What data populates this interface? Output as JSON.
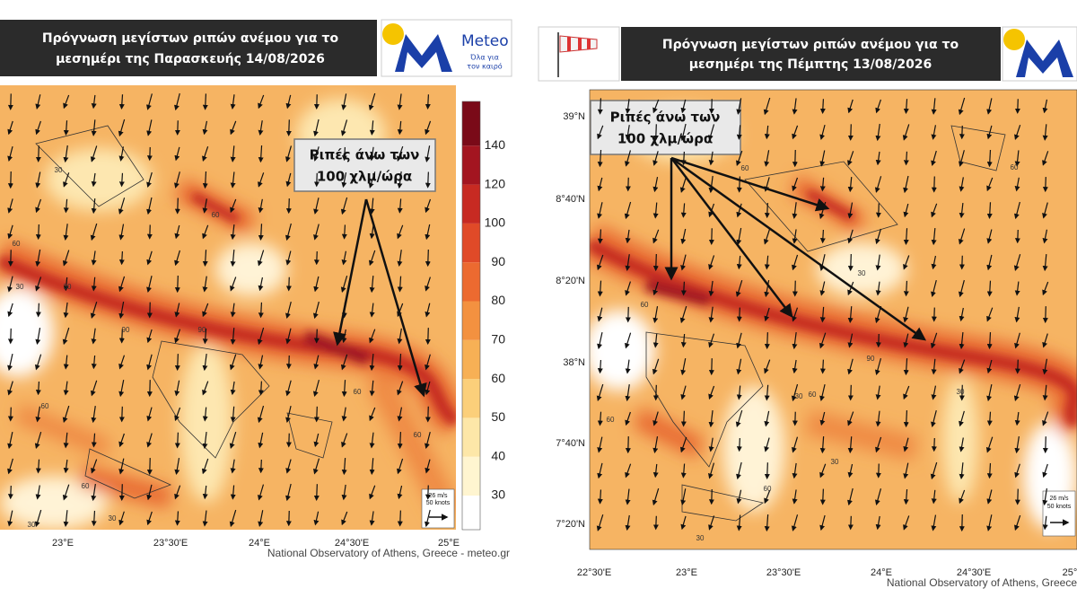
{
  "left_panel": {
    "title_lines": [
      "Πρόγνωση μεγίστων ριπών ανέμου για το",
      "μεσημέρι της Παρασκευής 14/08/2026"
    ],
    "logo": {
      "name": "Meteo",
      "tagline_lines": [
        "Όλα για",
        "τον καιρό"
      ]
    },
    "callout_lines": [
      "Ριπές άνω των",
      "100 χλμ/ώρα"
    ],
    "colorbar_labels": [
      30,
      40,
      50,
      60,
      70,
      80,
      90,
      100,
      120,
      140
    ],
    "x_labels": [
      "23°E",
      "23°30'E",
      "24°E",
      "24°30'E",
      "25°E"
    ],
    "vector_legend": [
      "26 m/s",
      "50 knots"
    ],
    "contour_labels": [
      30,
      30,
      60,
      60,
      30,
      90,
      90,
      60,
      60,
      30,
      60,
      60,
      30
    ],
    "credit": "National Observatory of Athens, Greece - meteo.gr"
  },
  "right_panel": {
    "title_lines": [
      "Πρόγνωση μεγίστων ριπών ανέμου για το",
      "μεσημέρι της Πέμπτης 13/08/2026"
    ],
    "callout_lines": [
      "Ριπές άνω των",
      "100 χλμ/ώρα"
    ],
    "y_labels": [
      "39°N",
      "8°40'N",
      "8°20'N",
      "38°N",
      "7°40'N",
      "7°20'N"
    ],
    "x_labels": [
      "22°30'E",
      "23°E",
      "23°30'E",
      "24°E",
      "24°30'E",
      "25°"
    ],
    "vector_legend": [
      "26 m/s",
      "50 knots"
    ],
    "contour_labels": [
      60,
      60,
      30,
      60,
      90,
      60,
      30,
      30,
      60,
      60,
      30,
      30
    ],
    "credit": "National Observatory of Athens, Greece"
  }
}
